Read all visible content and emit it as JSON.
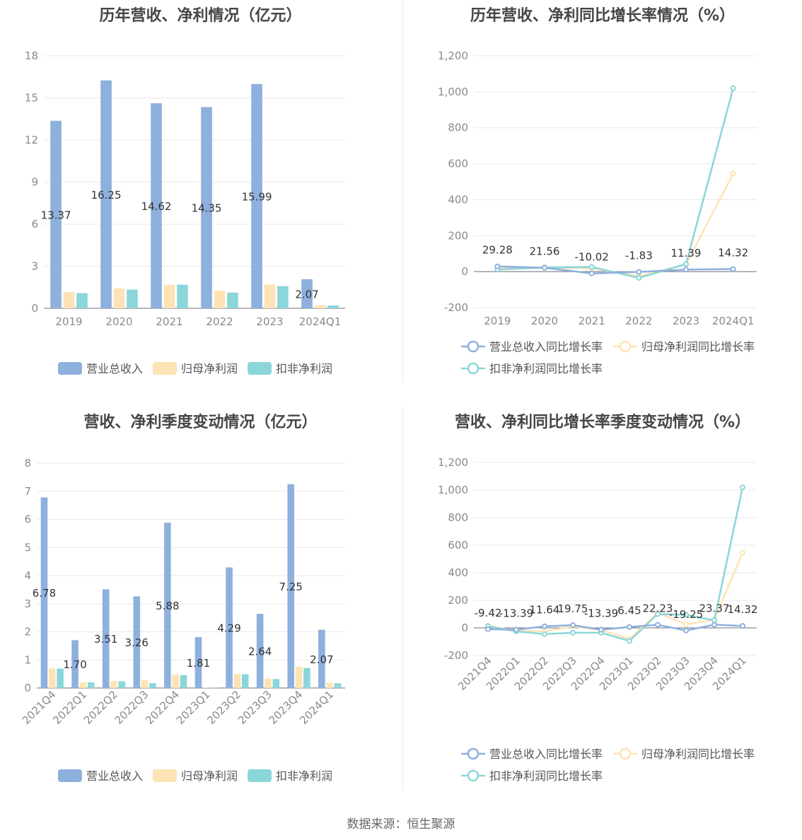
{
  "footer": {
    "source_text": "数据来源：恒生聚源"
  },
  "colors": {
    "revenue": "#8eb0dd",
    "net_profit": "#fde3b5",
    "deducted_profit": "#8bd6d9",
    "axis_text": "#8a8a8a",
    "grid": "#e8e8ee",
    "label": "#333333"
  },
  "chart_data": [
    {
      "id": "annual-amounts",
      "type": "bar",
      "title": "历年营收、净利情况（亿元）",
      "categories": [
        "2019",
        "2020",
        "2021",
        "2022",
        "2023",
        "2024Q1"
      ],
      "ylim": [
        0,
        18
      ],
      "yticks": [
        "0",
        "3",
        "6",
        "9",
        "12",
        "15",
        "18"
      ],
      "label_series": 0,
      "series": [
        {
          "name": "营业总收入",
          "color": "#8eb0dd",
          "values": [
            13.37,
            16.25,
            14.62,
            14.35,
            15.99,
            2.07
          ],
          "labels": [
            "13.37",
            "16.25",
            "14.62",
            "14.35",
            "15.99",
            "2.07"
          ]
        },
        {
          "name": "归母净利润",
          "color": "#fde3b5",
          "values": [
            1.15,
            1.42,
            1.68,
            1.25,
            1.7,
            0.22
          ]
        },
        {
          "name": "扣非净利润",
          "color": "#8bd6d9",
          "values": [
            1.08,
            1.33,
            1.68,
            1.12,
            1.58,
            0.2
          ]
        }
      ],
      "legend": "bottom-center",
      "grid": true
    },
    {
      "id": "annual-growth",
      "type": "line",
      "title": "历年营收、净利同比增长率情况（%）",
      "categories": [
        "2019",
        "2020",
        "2021",
        "2022",
        "2023",
        "2024Q1"
      ],
      "ylim": [
        -200,
        1200
      ],
      "yticks": [
        "-200",
        "0",
        "200",
        "400",
        "600",
        "800",
        "1,000",
        "1,200"
      ],
      "label_series": 0,
      "series": [
        {
          "name": "营业总收入同比增长率",
          "color": "#8eb0dd",
          "values": [
            29.28,
            21.56,
            -10.02,
            -1.83,
            11.39,
            14.32
          ],
          "labels": [
            "29.28",
            "21.56",
            "-10.02",
            "-1.83",
            "11.39",
            "14.32"
          ]
        },
        {
          "name": "归母净利润同比增长率",
          "color": "#fde3b5",
          "values": [
            18,
            22,
            18,
            -25,
            40,
            545
          ]
        },
        {
          "name": "扣非净利润同比增长率",
          "color": "#8bd6d9",
          "values": [
            12,
            23,
            26,
            -35,
            42,
            1020
          ]
        }
      ],
      "legend": "bottom-center",
      "grid": true
    },
    {
      "id": "quarterly-amounts",
      "type": "bar",
      "title": "营收、净利季度变动情况（亿元）",
      "categories": [
        "2021Q4",
        "2022Q1",
        "2022Q2",
        "2022Q3",
        "2022Q4",
        "2023Q1",
        "2023Q2",
        "2023Q3",
        "2023Q4",
        "2024Q1"
      ],
      "ylim": [
        0,
        8
      ],
      "yticks": [
        "0",
        "1",
        "2",
        "3",
        "4",
        "5",
        "6",
        "7",
        "8"
      ],
      "label_series": 0,
      "series": [
        {
          "name": "营业总收入",
          "color": "#8eb0dd",
          "values": [
            6.78,
            1.7,
            3.51,
            3.26,
            5.88,
            1.81,
            4.29,
            2.64,
            7.25,
            2.07
          ],
          "labels": [
            "6.78",
            "1.70",
            "3.51",
            "3.26",
            "5.88",
            "1.81",
            "4.29",
            "2.64",
            "7.25",
            "2.07"
          ]
        },
        {
          "name": "归母净利润",
          "color": "#fde3b5",
          "values": [
            0.7,
            0.2,
            0.25,
            0.28,
            0.48,
            0.02,
            0.5,
            0.34,
            0.76,
            0.19
          ]
        },
        {
          "name": "扣非净利润",
          "color": "#8bd6d9",
          "values": [
            0.69,
            0.2,
            0.24,
            0.17,
            0.46,
            0.01,
            0.49,
            0.32,
            0.71,
            0.17
          ]
        }
      ],
      "legend": "bottom-center",
      "grid": true
    },
    {
      "id": "quarterly-growth",
      "type": "line",
      "title": "营收、净利同比增长率季度变动情况（%）",
      "categories": [
        "2021Q4",
        "2022Q1",
        "2022Q2",
        "2022Q3",
        "2022Q4",
        "2023Q1",
        "2023Q2",
        "2023Q3",
        "2023Q4",
        "2024Q1"
      ],
      "ylim": [
        -200,
        1200
      ],
      "yticks": [
        "-200",
        "0",
        "200",
        "400",
        "600",
        "800",
        "1,000",
        "1,200"
      ],
      "label_series": 0,
      "series": [
        {
          "name": "营业总收入同比增长率",
          "color": "#8eb0dd",
          "values": [
            -9.42,
            -13.39,
            11.64,
            19.75,
            -13.39,
            6.45,
            22.23,
            -19.25,
            23.37,
            14.32
          ],
          "labels": [
            "-9.42",
            "-13.39",
            "11.64",
            "19.75",
            "-13.39",
            "6.45",
            "22.23",
            "-19.25",
            "23.37",
            "14.32"
          ]
        },
        {
          "name": "归母净利润同比增长率",
          "color": "#fde3b5",
          "values": [
            15,
            -20,
            -25,
            10,
            -15,
            -80,
            110,
            25,
            60,
            545
          ]
        },
        {
          "name": "扣非净利润同比增长率",
          "color": "#8bd6d9",
          "values": [
            12,
            -25,
            -45,
            -35,
            -35,
            -95,
            100,
            95,
            55,
            1020
          ]
        }
      ],
      "legend": "bottom-center",
      "grid": true
    }
  ]
}
